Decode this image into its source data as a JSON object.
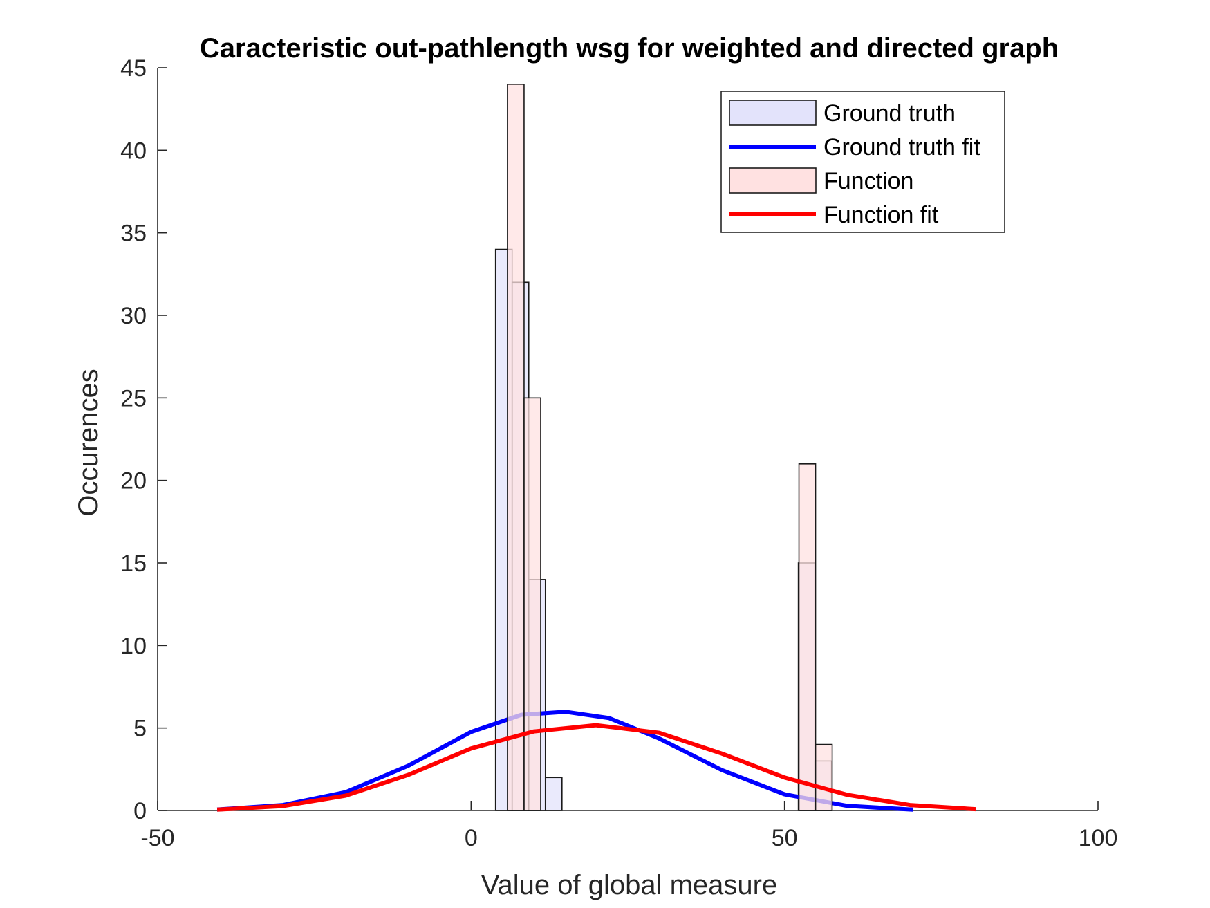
{
  "chart_data": {
    "type": "bar",
    "title": "Caracteristic out-pathlength wsg for weighted and directed graph",
    "xlabel": "Value of global measure",
    "ylabel": "Occurences",
    "xlim": [
      -50,
      100
    ],
    "ylim": [
      0,
      45
    ],
    "xticks": [
      "-50",
      "0",
      "50",
      "100"
    ],
    "yticks": [
      "0",
      "5",
      "10",
      "15",
      "20",
      "25",
      "30",
      "35",
      "40",
      "45"
    ],
    "bin_width": 2.65,
    "grid": false,
    "legend_position": "top-right",
    "series": [
      {
        "name": "Ground truth",
        "kind": "histogram",
        "color": "#e3e3fb",
        "bins": [
          {
            "start": 3.9,
            "count": 34
          },
          {
            "start": 6.55,
            "count": 32
          },
          {
            "start": 9.2,
            "count": 14
          },
          {
            "start": 11.85,
            "count": 2
          },
          {
            "start": 52.2,
            "count": 15
          },
          {
            "start": 54.85,
            "count": 3
          }
        ]
      },
      {
        "name": "Ground truth fit",
        "kind": "normal_fit",
        "color": "#0000ff",
        "x_range": [
          -40.5,
          70.5
        ],
        "points": [
          [
            -40.5,
            0.06
          ],
          [
            -30,
            0.33
          ],
          [
            -20,
            1.11
          ],
          [
            -10,
            2.72
          ],
          [
            0,
            4.76
          ],
          [
            8,
            5.8
          ],
          [
            15.1,
            5.98
          ],
          [
            22,
            5.6
          ],
          [
            30,
            4.36
          ],
          [
            40,
            2.45
          ],
          [
            50,
            0.98
          ],
          [
            60,
            0.28
          ],
          [
            70.5,
            0.05
          ]
        ]
      },
      {
        "name": "Function",
        "kind": "histogram",
        "color": "#ffe1e1",
        "bins": [
          {
            "start": 5.8,
            "count": 44
          },
          {
            "start": 8.45,
            "count": 25
          },
          {
            "start": 52.3,
            "count": 21
          },
          {
            "start": 54.95,
            "count": 4
          }
        ]
      },
      {
        "name": "Function fit",
        "kind": "normal_fit",
        "color": "#ff0000",
        "x_range": [
          -40.5,
          80.5
        ],
        "points": [
          [
            -40.5,
            0.05
          ],
          [
            -30,
            0.27
          ],
          [
            -20,
            0.9
          ],
          [
            -10,
            2.16
          ],
          [
            0,
            3.76
          ],
          [
            10,
            4.79
          ],
          [
            19.9,
            5.17
          ],
          [
            30,
            4.71
          ],
          [
            40,
            3.45
          ],
          [
            50,
            2.0
          ],
          [
            60,
            0.95
          ],
          [
            70,
            0.33
          ],
          [
            80.5,
            0.08
          ]
        ]
      }
    ]
  }
}
